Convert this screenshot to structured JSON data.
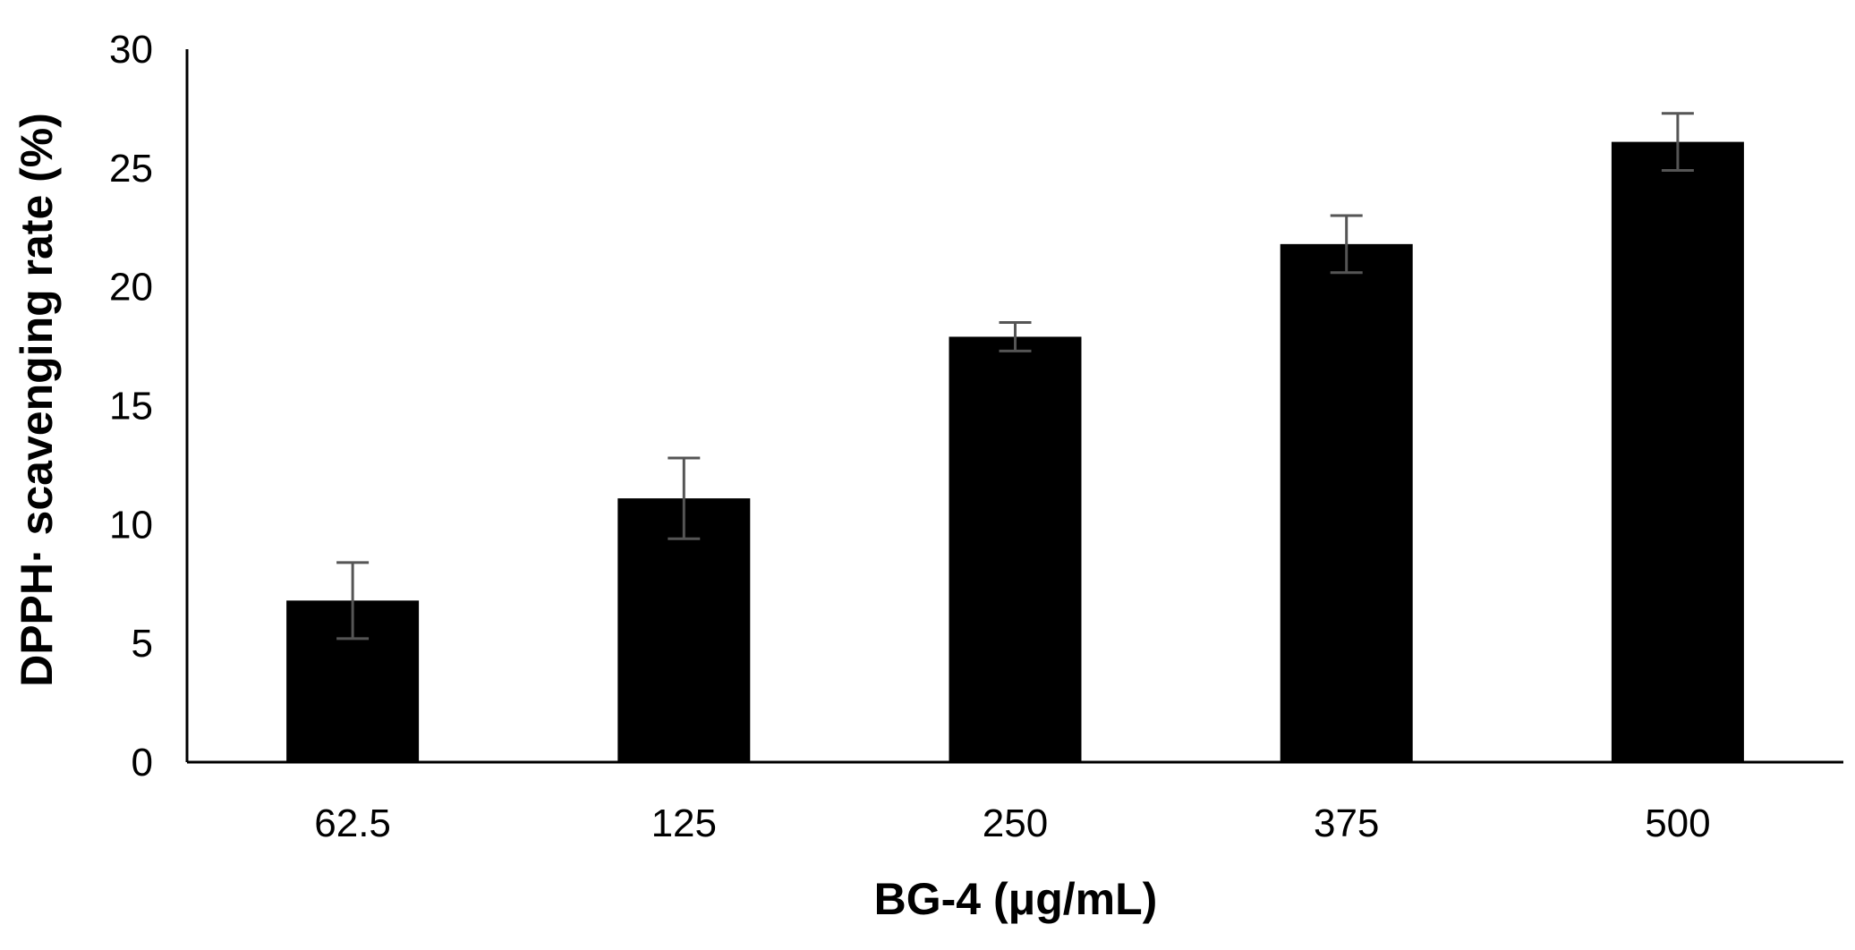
{
  "chart_data": {
    "type": "bar",
    "title": "",
    "xlabel": "BG-4 (μg/mL)",
    "ylabel": "DPPH· scavenging rate (%)",
    "categories": [
      "62.5",
      "125",
      "250",
      "375",
      "500"
    ],
    "values": [
      6.8,
      11.1,
      17.9,
      21.8,
      26.1
    ],
    "errors": [
      1.6,
      1.7,
      0.6,
      1.2,
      1.2
    ],
    "ylim": [
      0,
      30
    ],
    "yticks": [
      "0",
      "5",
      "10",
      "15",
      "20",
      "25",
      "30"
    ],
    "grid": false,
    "legend": "none",
    "colors": {
      "bar": "#000000",
      "error_bar": "#555555",
      "axis": "#000000"
    }
  }
}
